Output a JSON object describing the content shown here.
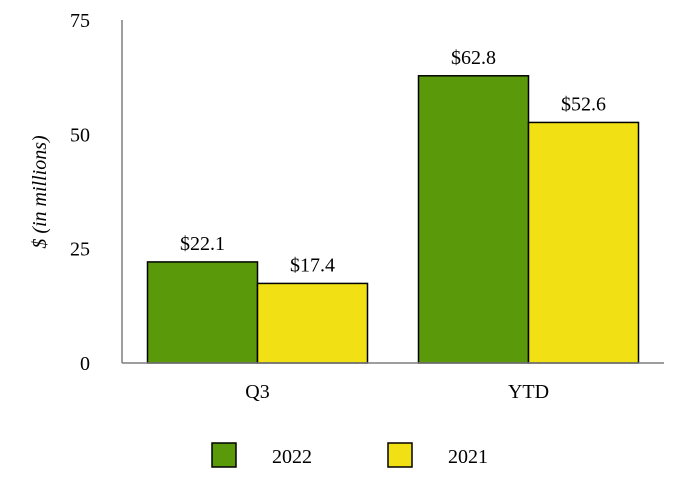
{
  "chart_data": {
    "type": "bar",
    "ylabel": "$ (in millions)",
    "ylim": [
      0,
      75
    ],
    "yticks": [
      0,
      25,
      50,
      75
    ],
    "categories": [
      "Q3",
      "YTD"
    ],
    "series": [
      {
        "name": "2022",
        "color": "#5a9a0a",
        "values": [
          22.1,
          62.8
        ],
        "labels": [
          "$22.1",
          "$62.8"
        ]
      },
      {
        "name": "2021",
        "color": "#f0e014",
        "values": [
          17.4,
          52.6
        ],
        "labels": [
          "$17.4",
          "$52.6"
        ]
      }
    ],
    "legend_position": "bottom",
    "grid": false
  }
}
